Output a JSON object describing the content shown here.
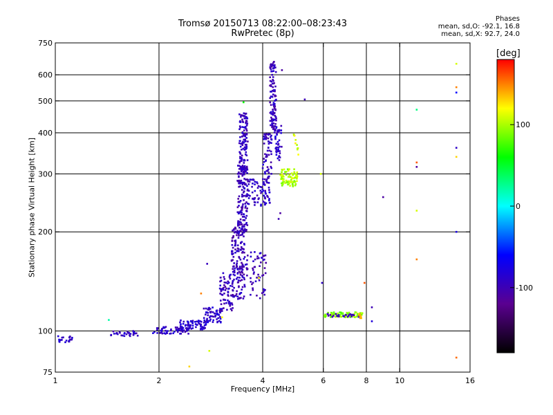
{
  "chart_data": {
    "type": "scatter",
    "title_lines": [
      "Tromsø 20150713 08:22:00–08:23:43",
      "RwPretec (8p)"
    ],
    "phases": {
      "title": "Phases",
      "o_line": "mean, sd,O: -92.1, 16.8",
      "x_line": "mean, sd,X: 92.7, 24.0"
    },
    "xlabel": "Frequency [MHz]",
    "ylabel": "Stationary phase Virtual Height [km]",
    "x_scale": "log",
    "y_scale": "log",
    "xlim": [
      1,
      16
    ],
    "ylim": [
      75,
      750
    ],
    "x_ticks": [
      1,
      2,
      4,
      6,
      8,
      10,
      16
    ],
    "y_ticks": [
      75,
      100,
      200,
      300,
      400,
      500,
      600,
      750
    ],
    "x_grid": [
      2,
      4,
      6,
      8,
      10
    ],
    "y_grid": [
      100,
      200,
      300,
      400,
      500,
      600
    ],
    "grid": true,
    "colorbar": {
      "label": "[deg]",
      "range": [
        -180,
        180
      ],
      "ticks": [
        100,
        0,
        -100
      ],
      "stops": [
        "#000000",
        "#5a0090",
        "#0000ff",
        "#00ffff",
        "#00ff00",
        "#ffff00",
        "#ff0000"
      ]
    },
    "clusters": [
      {
        "x": [
          1.0,
          1.12
        ],
        "y": [
          92,
          97
        ],
        "n": 22,
        "phase": -88
      },
      {
        "x": [
          1.45,
          1.75
        ],
        "y": [
          96,
          100
        ],
        "n": 30,
        "phase": -95
      },
      {
        "x": [
          1.92,
          2.45
        ],
        "y": [
          98,
          103
        ],
        "n": 60,
        "phase": -92
      },
      {
        "x": [
          2.3,
          2.75
        ],
        "y": [
          101,
          108
        ],
        "n": 70,
        "phase": -85
      },
      {
        "x": [
          2.7,
          3.05
        ],
        "y": [
          106,
          118
        ],
        "n": 60,
        "phase": -90
      },
      {
        "x": [
          3.0,
          3.3
        ],
        "y": [
          115,
          150
        ],
        "n": 70,
        "phase": -95
      },
      {
        "x": [
          3.25,
          3.55
        ],
        "y": [
          125,
          210
        ],
        "n": 160,
        "phase": -98
      },
      {
        "x": [
          3.38,
          3.62
        ],
        "y": [
          200,
          320
        ],
        "n": 140,
        "phase": -96
      },
      {
        "x": [
          3.42,
          3.62
        ],
        "y": [
          300,
          460
        ],
        "n": 130,
        "phase": -95
      },
      {
        "x": [
          3.6,
          4.2
        ],
        "y": [
          240,
          290
        ],
        "n": 80,
        "phase": -92
      },
      {
        "x": [
          3.55,
          4.1
        ],
        "y": [
          125,
          175
        ],
        "n": 60,
        "phase": -96
      },
      {
        "x": [
          4.0,
          4.25
        ],
        "y": [
          290,
          400
        ],
        "n": 60,
        "phase": -95
      },
      {
        "x": [
          4.2,
          4.38
        ],
        "y": [
          400,
          660
        ],
        "n": 110,
        "phase": -97
      },
      {
        "x": [
          4.35,
          4.55
        ],
        "y": [
          330,
          420
        ],
        "n": 40,
        "phase": -90
      },
      {
        "x": [
          4.5,
          5.05
        ],
        "y": [
          275,
          310
        ],
        "n": 80,
        "phase": 100
      },
      {
        "x": [
          4.9,
          5.1
        ],
        "y": [
          340,
          400
        ],
        "n": 10,
        "phase": 110
      },
      {
        "x": [
          6.0,
          7.8
        ],
        "y": [
          110,
          114
        ],
        "n": 70,
        "phase": 90
      },
      {
        "x": [
          6.1,
          7.7
        ],
        "y": [
          110,
          113
        ],
        "n": 25,
        "phase": -95
      },
      {
        "x": [
          7.6,
          7.75
        ],
        "y": [
          109,
          113
        ],
        "n": 6,
        "phase": 140
      }
    ],
    "points": [
      {
        "x": 1.43,
        "y": 108,
        "phase": 20
      },
      {
        "x": 3.52,
        "y": 495,
        "phase": 60
      },
      {
        "x": 4.55,
        "y": 620,
        "phase": -110
      },
      {
        "x": 5.3,
        "y": 505,
        "phase": -100
      },
      {
        "x": 4.5,
        "y": 228,
        "phase": -110
      },
      {
        "x": 4.45,
        "y": 219,
        "phase": -100
      },
      {
        "x": 2.76,
        "y": 160,
        "phase": -95
      },
      {
        "x": 2.65,
        "y": 130,
        "phase": 150
      },
      {
        "x": 2.7,
        "y": 117,
        "phase": -100
      },
      {
        "x": 2.8,
        "y": 87,
        "phase": 110
      },
      {
        "x": 2.45,
        "y": 78,
        "phase": 130
      },
      {
        "x": 3.05,
        "y": 110,
        "phase": 120
      },
      {
        "x": 3.9,
        "y": 145,
        "phase": 120
      },
      {
        "x": 5.9,
        "y": 300,
        "phase": 110
      },
      {
        "x": 5.95,
        "y": 140,
        "phase": -90
      },
      {
        "x": 7.9,
        "y": 140,
        "phase": 160
      },
      {
        "x": 8.3,
        "y": 118,
        "phase": -100
      },
      {
        "x": 8.3,
        "y": 107,
        "phase": -80
      },
      {
        "x": 8.95,
        "y": 255,
        "phase": -110
      },
      {
        "x": 11.2,
        "y": 470,
        "phase": 30
      },
      {
        "x": 11.2,
        "y": 325,
        "phase": 160
      },
      {
        "x": 11.2,
        "y": 315,
        "phase": -110
      },
      {
        "x": 11.2,
        "y": 232,
        "phase": 110
      },
      {
        "x": 11.2,
        "y": 165,
        "phase": 150
      },
      {
        "x": 14.6,
        "y": 648,
        "phase": 110
      },
      {
        "x": 14.6,
        "y": 550,
        "phase": 150
      },
      {
        "x": 14.6,
        "y": 530,
        "phase": -60
      },
      {
        "x": 14.6,
        "y": 360,
        "phase": -90
      },
      {
        "x": 14.6,
        "y": 338,
        "phase": 130
      },
      {
        "x": 14.6,
        "y": 200,
        "phase": -75
      },
      {
        "x": 14.6,
        "y": 83,
        "phase": 155
      }
    ]
  }
}
